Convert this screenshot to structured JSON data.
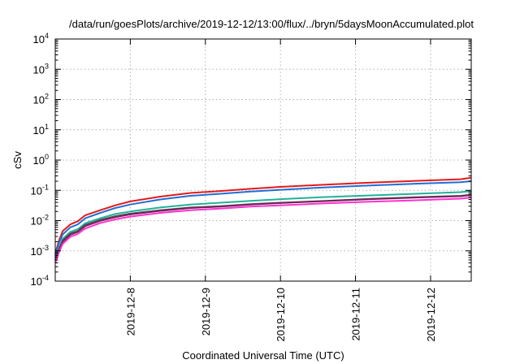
{
  "chart_data": {
    "type": "line",
    "title": "/data/run/goesPlots/archive/2019-12-12/13:00/flux/../bryn/5daysMoonAccumulated.plot",
    "xlabel": "Coordinated Universal Time (UTC)",
    "ylabel": "cSv",
    "yscale": "log",
    "ylim": [
      0.0001,
      10000
    ],
    "xlim": [
      "2019-12-07",
      "2019-12-12 13:00"
    ],
    "grid": true,
    "x_ticks": [
      "2019-12-8",
      "2019-12-9",
      "2019-12-10",
      "2019-12-11",
      "2019-12-12"
    ],
    "y_ticks": [
      {
        "value": 0.0001,
        "base": "10",
        "exp": "-4"
      },
      {
        "value": 0.001,
        "base": "10",
        "exp": "-3"
      },
      {
        "value": 0.01,
        "base": "10",
        "exp": "-2"
      },
      {
        "value": 0.1,
        "base": "10",
        "exp": "-1"
      },
      {
        "value": 1,
        "base": "10",
        "exp": "0"
      },
      {
        "value": 10,
        "base": "10",
        "exp": "1"
      },
      {
        "value": 100,
        "base": "10",
        "exp": "2"
      },
      {
        "value": 1000,
        "base": "10",
        "exp": "3"
      },
      {
        "value": 10000,
        "base": "10",
        "exp": "4"
      }
    ],
    "x": [
      "2019-12-07 00:00",
      "2019-12-07 01:12",
      "2019-12-07 02:24",
      "2019-12-07 04:48",
      "2019-12-07 07:12",
      "2019-12-07 09:36",
      "2019-12-07 14:24",
      "2019-12-07 19:12",
      "2019-12-08 00:00",
      "2019-12-08 09:36",
      "2019-12-08 19:12",
      "2019-12-09 04:48",
      "2019-12-09 14:24",
      "2019-12-10 00:00",
      "2019-12-10 14:24",
      "2019-12-11 04:48",
      "2019-12-11 19:12",
      "2019-12-12 09:36",
      "2019-12-12 13:00"
    ],
    "series": [
      {
        "color": "#e41a1c",
        "values": [
          0.0008,
          0.0022,
          0.0045,
          0.0075,
          0.0095,
          0.015,
          0.022,
          0.032,
          0.043,
          0.062,
          0.082,
          0.095,
          0.112,
          0.13,
          0.155,
          0.18,
          0.205,
          0.232,
          0.26
        ]
      },
      {
        "color": "#1f6fd6",
        "values": [
          0.0007,
          0.0018,
          0.0035,
          0.006,
          0.0075,
          0.012,
          0.018,
          0.026,
          0.034,
          0.05,
          0.066,
          0.077,
          0.091,
          0.104,
          0.125,
          0.145,
          0.165,
          0.185,
          0.2
        ]
      },
      {
        "color": "#20b29a",
        "values": [
          0.0006,
          0.0012,
          0.0025,
          0.0042,
          0.0052,
          0.0082,
          0.012,
          0.0165,
          0.02,
          0.027,
          0.034,
          0.039,
          0.045,
          0.051,
          0.06,
          0.068,
          0.077,
          0.087,
          0.095
        ]
      },
      {
        "color": "#505050",
        "values": [
          0.0005,
          0.0011,
          0.0022,
          0.0037,
          0.0045,
          0.0072,
          0.0105,
          0.014,
          0.017,
          0.022,
          0.027,
          0.03,
          0.035,
          0.039,
          0.045,
          0.052,
          0.059,
          0.066,
          0.072
        ]
      },
      {
        "color": "#7a2060",
        "values": [
          0.0005,
          0.001,
          0.002,
          0.0034,
          0.0042,
          0.0066,
          0.0098,
          0.013,
          0.016,
          0.021,
          0.026,
          0.029,
          0.034,
          0.038,
          0.044,
          0.051,
          0.058,
          0.064,
          0.07
        ]
      },
      {
        "color": "#ff33cc",
        "values": [
          0.0004,
          0.0009,
          0.0017,
          0.0029,
          0.0036,
          0.0055,
          0.0083,
          0.011,
          0.0135,
          0.018,
          0.022,
          0.025,
          0.029,
          0.032,
          0.037,
          0.042,
          0.047,
          0.053,
          0.058
        ]
      }
    ]
  }
}
